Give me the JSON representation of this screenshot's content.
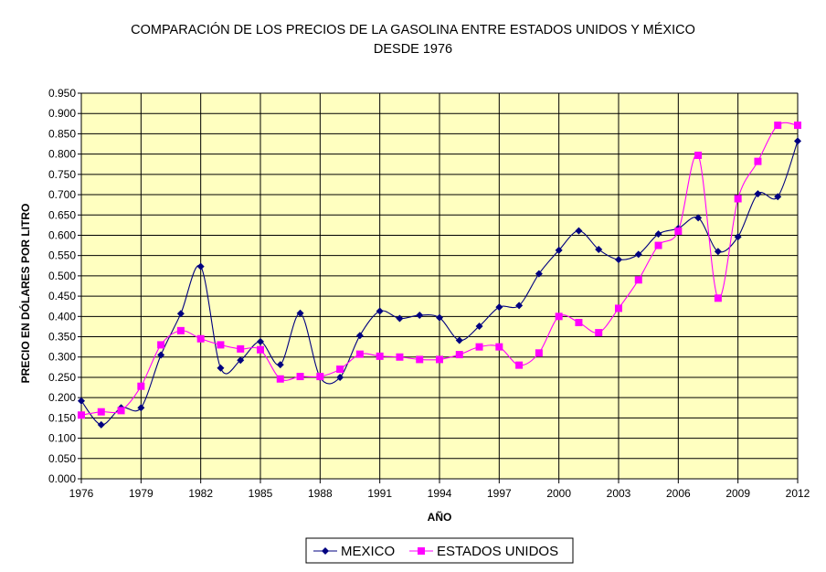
{
  "chart_data": {
    "type": "line",
    "title": "COMPARACIÓN DE LOS PRECIOS DE LA GASOLINA ENTRE ESTADOS UNIDOS Y MÉXICO",
    "subtitle": "DESDE 1976",
    "xlabel": "AÑO",
    "ylabel": "PRECIO EN DÓLARES POR LITRO",
    "xlim": [
      1976,
      2012
    ],
    "ylim": [
      0,
      0.95
    ],
    "x_ticks": [
      "1976",
      "1979",
      "1982",
      "1985",
      "1988",
      "1991",
      "1994",
      "1997",
      "2000",
      "2003",
      "2006",
      "2009",
      "2012"
    ],
    "y_ticks": [
      "0.000",
      "0.050",
      "0.100",
      "0.150",
      "0.200",
      "0.250",
      "0.300",
      "0.350",
      "0.400",
      "0.450",
      "0.500",
      "0.550",
      "0.600",
      "0.650",
      "0.700",
      "0.750",
      "0.800",
      "0.850",
      "0.900",
      "0.950"
    ],
    "grid": true,
    "legend_position": "bottom-center",
    "smooth": true,
    "plot_background": "#ffffc0",
    "years": [
      1976,
      1977,
      1978,
      1979,
      1980,
      1981,
      1982,
      1983,
      1984,
      1985,
      1986,
      1987,
      1988,
      1989,
      1990,
      1991,
      1992,
      1993,
      1994,
      1995,
      1996,
      1997,
      1998,
      1999,
      2000,
      2001,
      2002,
      2003,
      2004,
      2005,
      2006,
      2007,
      2008,
      2009,
      2010,
      2011,
      2012
    ],
    "series": [
      {
        "name": "MEXICO",
        "color": "#000080",
        "marker": "diamond",
        "values": [
          0.192,
          0.133,
          0.175,
          0.175,
          0.305,
          0.407,
          0.523,
          0.273,
          0.292,
          0.338,
          0.281,
          0.408,
          0.25,
          0.25,
          0.353,
          0.413,
          0.395,
          0.403,
          0.397,
          0.341,
          0.376,
          0.423,
          0.427,
          0.505,
          0.563,
          0.611,
          0.565,
          0.54,
          0.553,
          0.603,
          0.617,
          0.643,
          0.56,
          0.596,
          0.702,
          0.695,
          0.832
        ]
      },
      {
        "name": "ESTADOS UNIDOS",
        "color": "#ff00ff",
        "marker": "square",
        "values": [
          0.157,
          0.165,
          0.168,
          0.228,
          0.33,
          0.365,
          0.345,
          0.33,
          0.32,
          0.318,
          0.246,
          0.252,
          0.252,
          0.27,
          0.307,
          0.302,
          0.3,
          0.294,
          0.294,
          0.306,
          0.325,
          0.325,
          0.28,
          0.31,
          0.4,
          0.385,
          0.36,
          0.42,
          0.49,
          0.575,
          0.61,
          0.797,
          0.445,
          0.69,
          0.782,
          0.871,
          0.871
        ]
      }
    ]
  }
}
